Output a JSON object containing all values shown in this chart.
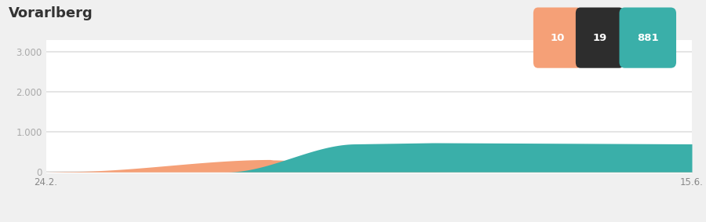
{
  "title": "Vorarlberg",
  "badge_values": [
    "10",
    "19",
    "881"
  ],
  "badge_colors": [
    "#f5a077",
    "#2d2d2d",
    "#3aafa9"
  ],
  "x_start_label": "24.2.",
  "x_end_label": "15.6.",
  "ytick_vals": [
    0,
    1000,
    2000,
    3000
  ],
  "ytick_labels": [
    "0",
    "1.000",
    "2.000",
    "3.000"
  ],
  "ylim": [
    -30,
    3300
  ],
  "page_bg": "#f0f0f0",
  "chart_bg": "#ffffff",
  "grid_color": "#e0e0e0",
  "orange_color": "#f5a077",
  "teal_color": "#3aafa9",
  "title_color": "#333333",
  "tick_color": "#aaaaaa",
  "xlabel_color": "#888888"
}
